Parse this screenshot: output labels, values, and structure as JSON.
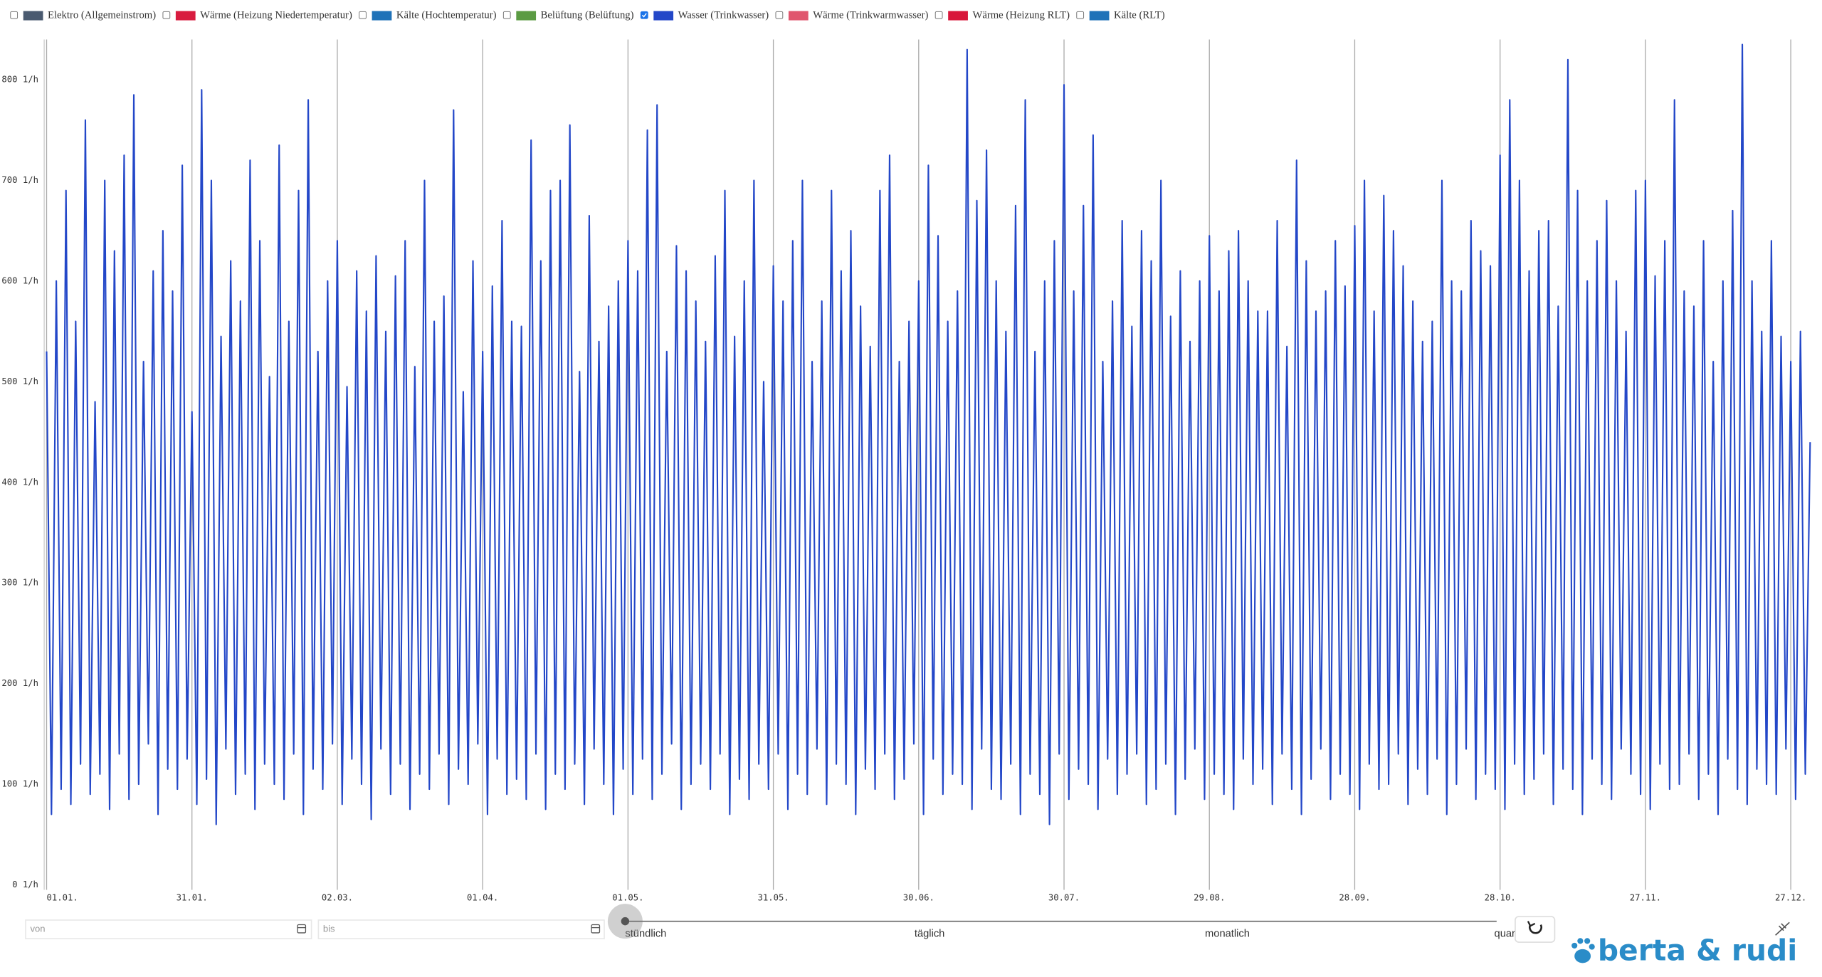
{
  "chart_data": {
    "type": "line",
    "series": [
      {
        "name": "Elektro (Allgemeinstrom)",
        "color": "#4a5a70",
        "checked": false
      },
      {
        "name": "Wärme (Heizung Niedertemperatur)",
        "color": "#d81c3f",
        "checked": false
      },
      {
        "name": "Kälte (Hochtemperatur)",
        "color": "#1f72b8",
        "checked": false
      },
      {
        "name": "Belüftung (Belüftung)",
        "color": "#5b9b43",
        "checked": false
      },
      {
        "name": "Wasser (Trinkwasser)",
        "color": "#2347c8",
        "checked": true,
        "x": [
          1,
          2,
          3,
          4,
          5,
          6,
          7,
          8,
          9,
          10,
          11,
          12,
          13,
          14,
          15,
          16,
          17,
          18,
          19,
          20,
          21,
          22,
          23,
          24,
          25,
          26,
          27,
          28,
          29,
          30,
          31,
          32,
          33,
          34,
          35,
          36,
          37,
          38,
          39,
          40,
          41,
          42,
          43,
          44,
          45,
          46,
          47,
          48,
          49,
          50,
          51,
          52,
          53,
          54,
          55,
          56,
          57,
          58,
          59,
          60,
          61,
          62,
          63,
          64,
          65,
          66,
          67,
          68,
          69,
          70,
          71,
          72,
          73,
          74,
          75,
          76,
          77,
          78,
          79,
          80,
          81,
          82,
          83,
          84,
          85,
          86,
          87,
          88,
          89,
          90,
          91,
          92,
          93,
          94,
          95,
          96,
          97,
          98,
          99,
          100,
          101,
          102,
          103,
          104,
          105,
          106,
          107,
          108,
          109,
          110,
          111,
          112,
          113,
          114,
          115,
          116,
          117,
          118,
          119,
          120,
          121,
          122,
          123,
          124,
          125,
          126,
          127,
          128,
          129,
          130,
          131,
          132,
          133,
          134,
          135,
          136,
          137,
          138,
          139,
          140,
          141,
          142,
          143,
          144,
          145,
          146,
          147,
          148,
          149,
          150,
          151,
          152,
          153,
          154,
          155,
          156,
          157,
          158,
          159,
          160,
          161,
          162,
          163,
          164,
          165,
          166,
          167,
          168,
          169,
          170,
          171,
          172,
          173,
          174,
          175,
          176,
          177,
          178,
          179,
          180,
          181,
          182,
          183,
          184,
          185,
          186,
          187,
          188,
          189,
          190,
          191,
          192,
          193,
          194,
          195,
          196,
          197,
          198,
          199,
          200,
          201,
          202,
          203,
          204,
          205,
          206,
          207,
          208,
          209,
          210,
          211,
          212,
          213,
          214,
          215,
          216,
          217,
          218,
          219,
          220,
          221,
          222,
          223,
          224,
          225,
          226,
          227,
          228,
          229,
          230,
          231,
          232,
          233,
          234,
          235,
          236,
          237,
          238,
          239,
          240,
          241,
          242,
          243,
          244,
          245,
          246,
          247,
          248,
          249,
          250,
          251,
          252,
          253,
          254,
          255,
          256,
          257,
          258,
          259,
          260,
          261,
          262,
          263,
          264,
          265,
          266,
          267,
          268,
          269,
          270,
          271,
          272,
          273,
          274,
          275,
          276,
          277,
          278,
          279,
          280,
          281,
          282,
          283,
          284,
          285,
          286,
          287,
          288,
          289,
          290,
          291,
          292,
          293,
          294,
          295,
          296,
          297,
          298,
          299,
          300,
          301,
          302,
          303,
          304,
          305,
          306,
          307,
          308,
          309,
          310,
          311,
          312,
          313,
          314,
          315,
          316,
          317,
          318,
          319,
          320,
          321,
          322,
          323,
          324,
          325,
          326,
          327,
          328,
          329,
          330,
          331,
          332,
          333,
          334,
          335,
          336,
          337,
          338,
          339,
          340,
          341,
          342,
          343,
          344,
          345,
          346,
          347,
          348,
          349,
          350,
          351,
          352,
          353,
          354,
          355,
          356,
          357,
          358,
          359,
          360,
          361,
          362,
          363,
          364,
          365
        ],
        "values": [
          530,
          70,
          600,
          95,
          690,
          80,
          560,
          120,
          760,
          90,
          480,
          110,
          700,
          75,
          630,
          130,
          725,
          85,
          785,
          100,
          520,
          140,
          610,
          70,
          650,
          115,
          590,
          95,
          715,
          125,
          470,
          80,
          790,
          105,
          700,
          60,
          545,
          135,
          620,
          90,
          580,
          110,
          720,
          75,
          640,
          120,
          505,
          100,
          735,
          85,
          560,
          130,
          690,
          70,
          780,
          115,
          530,
          95,
          600,
          140,
          640,
          80,
          495,
          125,
          610,
          100,
          570,
          65,
          625,
          135,
          550,
          90,
          605,
          120,
          640,
          75,
          515,
          110,
          700,
          95,
          560,
          130,
          585,
          80,
          770,
          115,
          490,
          100,
          620,
          140,
          530,
          70,
          595,
          125,
          660,
          90,
          560,
          105,
          555,
          85,
          740,
          130,
          620,
          75,
          690,
          110,
          700,
          95,
          755,
          120,
          510,
          80,
          665,
          135,
          540,
          100,
          575,
          70,
          600,
          115,
          640,
          90,
          610,
          125,
          750,
          85,
          775,
          110,
          530,
          140,
          635,
          75,
          610,
          100,
          580,
          120,
          540,
          95,
          625,
          130,
          690,
          70,
          545,
          105,
          600,
          85,
          700,
          120,
          500,
          95,
          615,
          130,
          580,
          75,
          640,
          110,
          700,
          90,
          520,
          135,
          580,
          80,
          690,
          120,
          610,
          100,
          650,
          70,
          575,
          115,
          535,
          95,
          690,
          130,
          725,
          85,
          520,
          105,
          560,
          140,
          600,
          70,
          715,
          125,
          645,
          90,
          560,
          110,
          590,
          100,
          830,
          75,
          680,
          135,
          730,
          95,
          600,
          85,
          550,
          120,
          675,
          70,
          780,
          110,
          530,
          90,
          600,
          60,
          640,
          130,
          795,
          85,
          590,
          115,
          675,
          100,
          745,
          75,
          520,
          125,
          580,
          90,
          660,
          110,
          555,
          130,
          650,
          80,
          620,
          95,
          700,
          120,
          565,
          70,
          610,
          105,
          540,
          135,
          600,
          85,
          645,
          110,
          590,
          90,
          630,
          75,
          650,
          125,
          600,
          100,
          570,
          115,
          570,
          80,
          660,
          130,
          535,
          95,
          720,
          70,
          620,
          105,
          570,
          135,
          590,
          85,
          640,
          110,
          595,
          90,
          655,
          75,
          700,
          120,
          570,
          95,
          685,
          100,
          650,
          130,
          615,
          80,
          580,
          115,
          540,
          90,
          560,
          125,
          700,
          70,
          600,
          100,
          590,
          135,
          660,
          85,
          630,
          110,
          615,
          95,
          725,
          75,
          780,
          120,
          700,
          90,
          610,
          105,
          650,
          130,
          660,
          80,
          575,
          115,
          820,
          95,
          690,
          70,
          600,
          125,
          640,
          100,
          680,
          85,
          600,
          135,
          550,
          110,
          690,
          90,
          700,
          75,
          605,
          120,
          640,
          95,
          780,
          100,
          590,
          130,
          575,
          85,
          640,
          110,
          520,
          70,
          600,
          125,
          670,
          95,
          835,
          80,
          600,
          115,
          550,
          100,
          640,
          90,
          545,
          135,
          520,
          85,
          550,
          110,
          440
        ]
      },
      {
        "name": "Wärme (Trinkwarmwasser)",
        "color": "#e0566e",
        "checked": false
      },
      {
        "name": "Wärme (Heizung RLT)",
        "color": "#d8163a",
        "checked": false
      },
      {
        "name": "Kälte (RLT)",
        "color": "#1f72b8",
        "checked": false
      }
    ],
    "xlim": [
      0.5,
      366
    ],
    "xticks": [
      {
        "value": 1,
        "label": "01.01."
      },
      {
        "value": 31,
        "label": "31.01."
      },
      {
        "value": 61,
        "label": "02.03."
      },
      {
        "value": 91,
        "label": "01.04."
      },
      {
        "value": 121,
        "label": "01.05."
      },
      {
        "value": 151,
        "label": "31.05."
      },
      {
        "value": 181,
        "label": "30.06."
      },
      {
        "value": 211,
        "label": "30.07."
      },
      {
        "value": 241,
        "label": "29.08."
      },
      {
        "value": 271,
        "label": "28.09."
      },
      {
        "value": 301,
        "label": "28.10."
      },
      {
        "value": 331,
        "label": "27.11."
      },
      {
        "value": 361,
        "label": "27.12."
      }
    ],
    "ylim": [
      -5,
      840
    ],
    "yticks": [
      {
        "value": 0,
        "label": "0 1/h"
      },
      {
        "value": 100,
        "label": "100 1/h"
      },
      {
        "value": 200,
        "label": "200 1/h"
      },
      {
        "value": 300,
        "label": "300 1/h"
      },
      {
        "value": 400,
        "label": "400 1/h"
      },
      {
        "value": 500,
        "label": "500 1/h"
      },
      {
        "value": 600,
        "label": "600 1/h"
      },
      {
        "value": 700,
        "label": "700 1/h"
      },
      {
        "value": 800,
        "label": "800 1/h"
      }
    ],
    "grid": true
  },
  "controls": {
    "from_placeholder": "von",
    "to_placeholder": "bis",
    "resolutions": [
      "stündlich",
      "täglich",
      "monatlich",
      "quar"
    ],
    "selected_resolution": 0
  },
  "brand": "berta & rudi"
}
